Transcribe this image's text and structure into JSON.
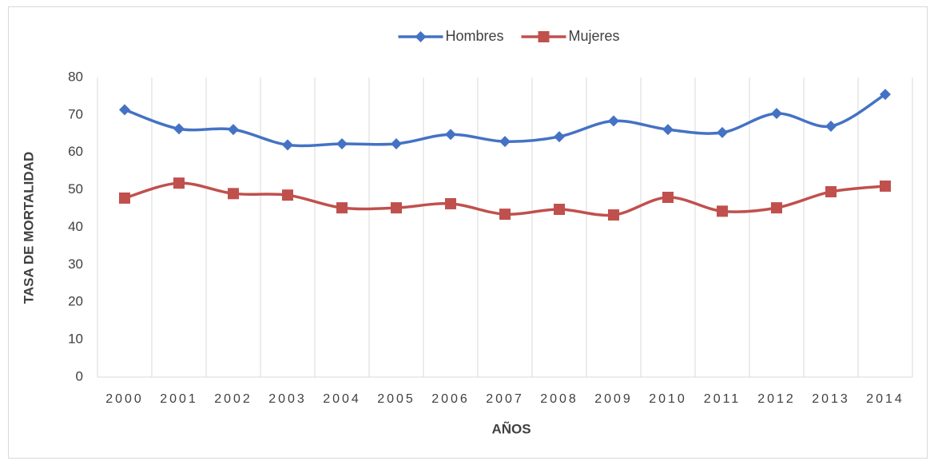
{
  "chart_data": {
    "type": "line",
    "categories": [
      "2000",
      "2001",
      "2002",
      "2003",
      "2004",
      "2005",
      "2006",
      "2007",
      "2008",
      "2009",
      "2010",
      "2011",
      "2012",
      "2013",
      "2014"
    ],
    "series": [
      {
        "name": "Hombres",
        "color": "#4472c4",
        "marker": "diamond",
        "values": [
          71.4,
          66.3,
          66.1,
          62.0,
          62.3,
          62.3,
          64.8,
          62.9,
          64.2,
          68.4,
          66.1,
          65.3,
          70.4,
          67.0,
          75.5
        ]
      },
      {
        "name": "Mujeres",
        "color": "#c0504d",
        "marker": "square",
        "values": [
          47.8,
          51.8,
          49.0,
          48.6,
          45.2,
          45.2,
          46.3,
          43.5,
          44.8,
          43.3,
          48.0,
          44.3,
          45.2,
          49.5,
          51.0
        ]
      }
    ],
    "ylim": [
      0,
      80
    ],
    "yticks": [
      0,
      10,
      20,
      30,
      40,
      50,
      60,
      70,
      80
    ],
    "xlabel": "AÑOS",
    "ylabel": "TASA DE MORTALIDAD",
    "grid": true,
    "smooth": true,
    "legend": "top"
  }
}
